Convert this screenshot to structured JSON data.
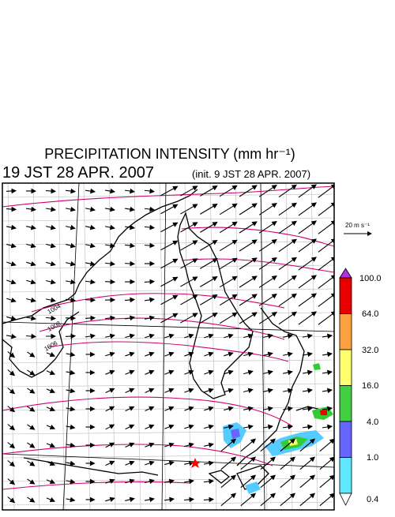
{
  "header": {
    "title": "PRECIPITATION INTENSITY (mm hr⁻¹)",
    "valid_time": "19 JST 28 APR. 2007",
    "init_time": "(init. 9 JST 28 APR. 2007)"
  },
  "wind_scale": {
    "label": "20 m s⁻¹"
  },
  "colorbar": {
    "labels": [
      "100.0",
      "64.0",
      "32.0",
      "16.0",
      "4.0",
      "1.0",
      "0.4"
    ]
  },
  "contour_labels": [
    "1004",
    "1008",
    "1006"
  ]
}
